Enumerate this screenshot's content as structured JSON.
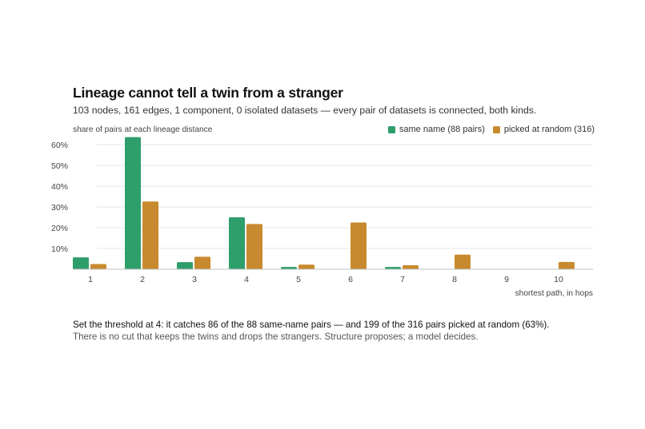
{
  "header": {
    "title": "Lineage cannot tell a twin from a stranger",
    "subtitle": "103 nodes, 161 edges, 1 component, 0 isolated datasets — every pair of datasets is connected, both kinds."
  },
  "legend": {
    "same_name": "same name (88 pairs)",
    "random": "picked at random (316)"
  },
  "colors": {
    "same_name": "#2e9e6b",
    "random": "#c88a2e",
    "grid": "#e6e6e6",
    "axis": "#bdbdbd"
  },
  "footer": {
    "line1": "Set the threshold at 4: it catches 86 of the 88 same-name pairs — and 199 of the 316 pairs picked at random (63%).",
    "line2": "There is no cut that keeps the twins and drops the strangers. Structure proposes; a model decides."
  },
  "chart_data": {
    "type": "bar",
    "ylabel": "share of pairs at each lineage distance",
    "xlabel": "shortest path, in hops",
    "categories": [
      "1",
      "2",
      "3",
      "4",
      "5",
      "6",
      "7",
      "8",
      "9",
      "10"
    ],
    "ylim": [
      0,
      65
    ],
    "yticks": [
      10,
      20,
      30,
      40,
      50,
      60
    ],
    "ytick_labels": [
      "10%",
      "20%",
      "30%",
      "40%",
      "50%",
      "60%"
    ],
    "grid": true,
    "legend_position": "top-right",
    "series": [
      {
        "name": "same name (88 pairs)",
        "color_key": "same_name",
        "values": [
          5.7,
          63.6,
          3.4,
          25.0,
          1.1,
          0,
          1.1,
          0,
          0,
          0
        ]
      },
      {
        "name": "picked at random (316)",
        "color_key": "random",
        "values": [
          2.5,
          32.6,
          6.0,
          21.8,
          2.2,
          22.5,
          1.9,
          7.0,
          0,
          3.5
        ]
      }
    ]
  }
}
